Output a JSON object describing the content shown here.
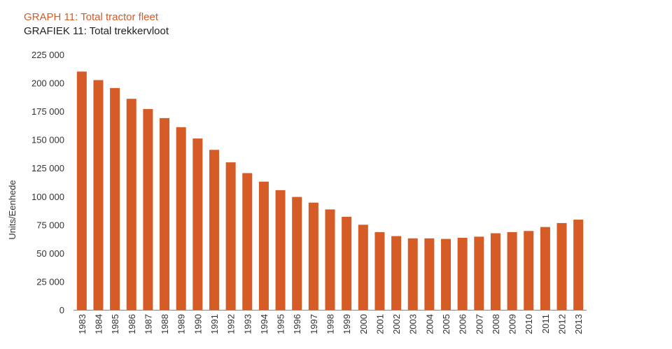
{
  "chart_data": {
    "type": "bar",
    "title": "GRAPH 11: Total tractor fleet",
    "subtitle": "GRAFIEK 11: Total trekkervloot",
    "ylabel": "Units/Eenhede",
    "ylim": [
      0,
      225000
    ],
    "yticks": [
      {
        "value": 0,
        "label": "0"
      },
      {
        "value": 25000,
        "label": "25 000"
      },
      {
        "value": 50000,
        "label": "50 000"
      },
      {
        "value": 75000,
        "label": "75 000"
      },
      {
        "value": 100000,
        "label": "100 000"
      },
      {
        "value": 125000,
        "label": "125 000"
      },
      {
        "value": 150000,
        "label": "150 000"
      },
      {
        "value": 175000,
        "label": "175 000"
      },
      {
        "value": 200000,
        "label": "200 000"
      },
      {
        "value": 225000,
        "label": "225 000"
      }
    ],
    "categories": [
      "1983",
      "1984",
      "1985",
      "1986",
      "1987",
      "1988",
      "1989",
      "1990",
      "1991",
      "1992",
      "1993",
      "1994",
      "1995",
      "1996",
      "1997",
      "1998",
      "1999",
      "2000",
      "2001",
      "2002",
      "2003",
      "2004",
      "2005",
      "2006",
      "2007",
      "2008",
      "2009",
      "2010",
      "2011",
      "2012",
      "2013"
    ],
    "values": [
      210000,
      202500,
      195500,
      186000,
      177000,
      169000,
      161000,
      151000,
      141000,
      130000,
      120500,
      113000,
      105500,
      99500,
      94500,
      88500,
      82000,
      75000,
      68500,
      65000,
      63000,
      63000,
      62500,
      63500,
      64500,
      67500,
      68500,
      69500,
      73000,
      76500,
      79500
    ],
    "grid": false,
    "legend": "none",
    "bar_color": "#d55b27"
  }
}
